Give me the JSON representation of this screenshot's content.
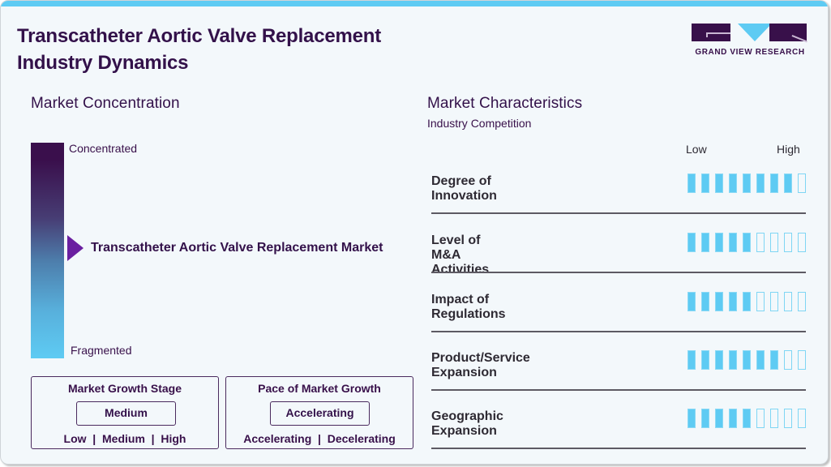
{
  "header": {
    "title_line1": "Transcatheter Aortic Valve Replacement",
    "title_line2": "Industry Dynamics",
    "logo_text": "GRAND VIEW RESEARCH"
  },
  "colors": {
    "accent_blue": "#5ecbf3",
    "brand_purple": "#38104a",
    "marker_purple": "#6a1fa0",
    "background": "#f3f8fb"
  },
  "concentration": {
    "title": "Market Concentration",
    "top_label": "Concentrated",
    "bottom_label": "Fragmented",
    "market_label": "Transcatheter Aortic Valve Replacement Market"
  },
  "growth_stage": {
    "title": "Market Growth Stage",
    "value": "Medium",
    "options": "Low  |  Medium  |  High"
  },
  "growth_pace": {
    "title": "Pace of Market Growth",
    "value": "Accelerating",
    "options": "Accelerating  |  Decelerating"
  },
  "characteristics": {
    "title": "Market Characteristics",
    "subtitle": "Industry Competition",
    "scale_low": "Low",
    "scale_high": "High",
    "max_score": 9,
    "items": [
      {
        "label": "Degree of Innovation",
        "score": 8
      },
      {
        "label": "Level of M&A Activities",
        "score": 5
      },
      {
        "label": "Impact of Regulations",
        "score": 5
      },
      {
        "label": "Product/Service Expansion",
        "score": 7
      },
      {
        "label": "Geographic Expansion",
        "score": 5
      }
    ]
  }
}
